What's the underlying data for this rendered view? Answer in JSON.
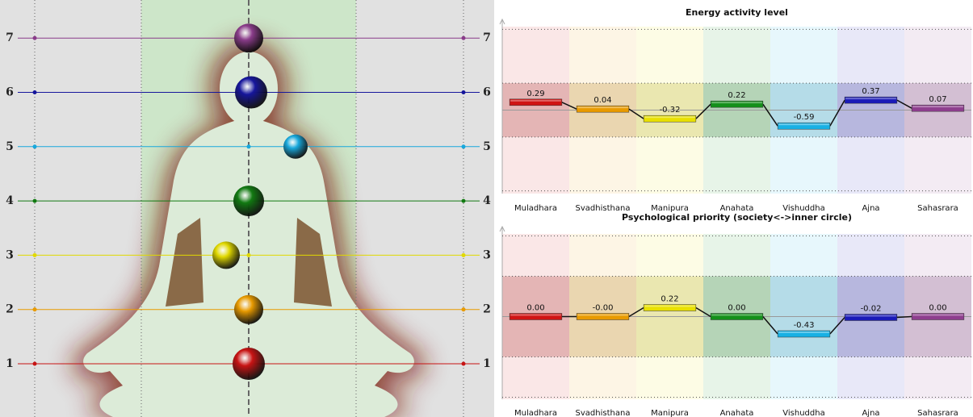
{
  "figure": {
    "levels": [
      1,
      2,
      3,
      4,
      5,
      6,
      7
    ],
    "colors": [
      "#c81414",
      "#e89a00",
      "#e0d800",
      "#127a12",
      "#18a8dc",
      "#16169c",
      "#8a3c8a"
    ]
  },
  "chart_data": [
    {
      "type": "bar",
      "title": "Energy activity level",
      "categories": [
        "Muladhara",
        "Svadhisthana",
        "Manipura",
        "Anahata",
        "Vishuddha",
        "Ajna",
        "Sahasrara"
      ],
      "values": [
        0.29,
        0.04,
        -0.32,
        0.22,
        -0.59,
        0.37,
        0.07
      ],
      "colors": [
        "#d01414",
        "#e89a00",
        "#e8e000",
        "#14901a",
        "#18b0e4",
        "#1a1ab8",
        "#8e3e8e"
      ],
      "ylim": [
        -3.1,
        3.1
      ],
      "yticks": [
        -3,
        -1,
        1,
        3
      ],
      "grid": true
    },
    {
      "type": "bar",
      "title": "Psychological priority (society<->inner circle)",
      "categories": [
        "Muladhara",
        "Svadhisthana",
        "Manipura",
        "Anahata",
        "Vishuddha",
        "Ajna",
        "Sahasrara"
      ],
      "values": [
        0,
        0,
        0.22,
        0,
        -0.43,
        -0.02,
        0
      ],
      "value_labels": [
        "0.00",
        "-0.00",
        "0.22",
        "0.00",
        "-0.43",
        "-0.02",
        "0.00"
      ],
      "colors": [
        "#d01414",
        "#e89a00",
        "#e8e000",
        "#14901a",
        "#18b0e4",
        "#1a1ab8",
        "#8e3e8e"
      ],
      "ylim": [
        -2.05,
        2.05
      ],
      "yticks": [
        -2,
        -1,
        1,
        2
      ],
      "grid": true
    }
  ]
}
